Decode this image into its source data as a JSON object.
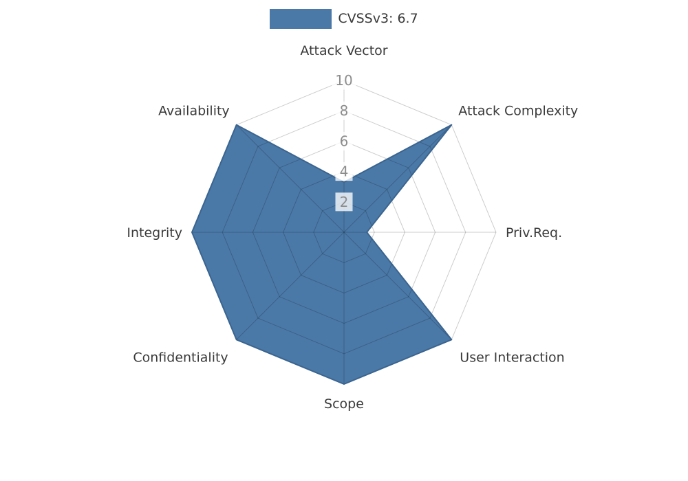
{
  "chart_data": {
    "type": "radar",
    "legend": {
      "label": "CVSSv3: 6.7",
      "position": "top"
    },
    "categories": [
      "Attack Vector",
      "Attack Complexity",
      "Priv.Req.",
      "User Interaction",
      "Scope",
      "Confidentiality",
      "Integrity",
      "Availability"
    ],
    "values": [
      3.3,
      10,
      1.5,
      10,
      10,
      10,
      10,
      10
    ],
    "ticks": [
      2,
      4,
      6,
      8,
      10
    ],
    "range": [
      0,
      10
    ],
    "grid": "on",
    "colors": {
      "fill": "#4a79a8",
      "stroke": "#3a648f",
      "grid": "rgba(0,0,0,0.2)",
      "axis_label": "#3a3a3a",
      "tick_label": "#8c8c8c",
      "tick_box": "rgba(255,255,255,0.78)",
      "background": "#ffffff"
    }
  }
}
